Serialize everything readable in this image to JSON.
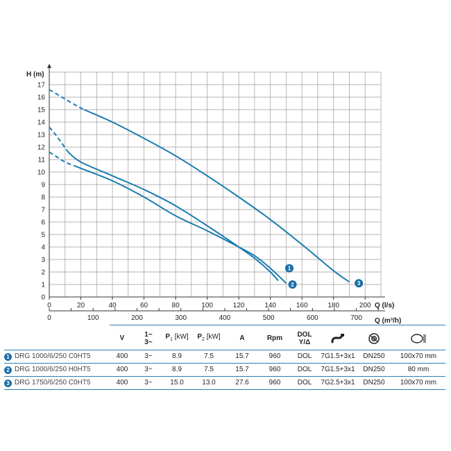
{
  "chart_data": {
    "type": "line",
    "ylabel": "H (m)",
    "xlabel": "Q (l/s)",
    "xlabel2": "Q (m³/h)",
    "xlim": [
      0,
      210
    ],
    "ylim": [
      0,
      18
    ],
    "xticks": [
      0,
      20,
      40,
      60,
      80,
      100,
      120,
      140,
      160,
      180,
      200
    ],
    "yticks": [
      0,
      1,
      2,
      3,
      4,
      5,
      6,
      7,
      8,
      9,
      10,
      11,
      12,
      13,
      14,
      15,
      16,
      17
    ],
    "x2ticks": [
      0,
      100,
      200,
      300,
      400,
      500,
      600,
      700
    ],
    "grid": true,
    "series": [
      {
        "label": "1",
        "dashed": [
          [
            0,
            13.6
          ],
          [
            4,
            13.0
          ],
          [
            8,
            12.3
          ],
          [
            12,
            11.6
          ]
        ],
        "solid": [
          [
            12,
            11.6
          ],
          [
            20,
            10.8
          ],
          [
            40,
            9.7
          ],
          [
            60,
            8.6
          ],
          [
            80,
            7.3
          ],
          [
            100,
            5.7
          ],
          [
            120,
            4.0
          ],
          [
            130,
            3.1
          ],
          [
            140,
            2.0
          ],
          [
            145,
            1.3
          ]
        ],
        "marker": [
          152,
          2.3
        ]
      },
      {
        "label": "2",
        "dashed": [
          [
            0,
            11.6
          ],
          [
            5,
            11.2
          ],
          [
            10,
            10.8
          ],
          [
            16,
            10.5
          ]
        ],
        "solid": [
          [
            16,
            10.5
          ],
          [
            20,
            10.3
          ],
          [
            40,
            9.3
          ],
          [
            60,
            8.0
          ],
          [
            80,
            6.5
          ],
          [
            100,
            5.3
          ],
          [
            120,
            4.0
          ],
          [
            130,
            3.3
          ],
          [
            140,
            2.3
          ],
          [
            150,
            1.1
          ]
        ],
        "marker": [
          154,
          1.0
        ]
      },
      {
        "label": "3",
        "dashed": [
          [
            0,
            16.6
          ],
          [
            8,
            16.0
          ],
          [
            16,
            15.4
          ],
          [
            22,
            15.0
          ]
        ],
        "solid": [
          [
            22,
            15.0
          ],
          [
            40,
            14.0
          ],
          [
            60,
            12.7
          ],
          [
            80,
            11.3
          ],
          [
            100,
            9.7
          ],
          [
            120,
            8.0
          ],
          [
            140,
            6.2
          ],
          [
            160,
            4.2
          ],
          [
            180,
            2.1
          ],
          [
            190,
            1.2
          ]
        ],
        "marker": [
          196,
          1.1
        ]
      }
    ]
  },
  "table": {
    "headers": {
      "v": "V",
      "phase_top": "1~",
      "phase_bottom": "3~",
      "p1_sym": "P",
      "p1_sub": "1",
      "p1_unit": "[kW]",
      "p2_sym": "P",
      "p2_sub": "2",
      "p2_unit": "[kW]",
      "amp": "A",
      "rpm": "Rpm",
      "dol_top": "DOL",
      "dol_bottom": "Y/Δ",
      "cable_icon": "cable-icon",
      "flange_icon": "flange-icon",
      "passage_icon": "solid-passage-icon"
    },
    "rows": [
      {
        "num": "1",
        "model": "DRG 1000/6/250 C0HT5",
        "v": "400",
        "phase": "3~",
        "p1": "8.9",
        "p2": "7.5",
        "amp": "15.7",
        "rpm": "960",
        "start": "DOL",
        "cable": "7G1.5+3x1",
        "outlet": "DN250",
        "passage": "100x70 mm"
      },
      {
        "num": "2",
        "model": "DRG 1000/6/250 H0HT5",
        "v": "400",
        "phase": "3~",
        "p1": "8.9",
        "p2": "7.5",
        "amp": "15.7",
        "rpm": "960",
        "start": "DOL",
        "cable": "7G1.5+3x1",
        "outlet": "DN250",
        "passage": "80 mm"
      },
      {
        "num": "3",
        "model": "DRG 1750/6/250 C0HT5",
        "v": "400",
        "phase": "3~",
        "p1": "15.0",
        "p2": "13.0",
        "amp": "27.6",
        "rpm": "960",
        "start": "DOL",
        "cable": "7G2.5+3x1",
        "outlet": "DN250",
        "passage": "100x70 mm"
      }
    ]
  },
  "colors": {
    "curve": "#1a7bb0",
    "badge": "#1a6ea6",
    "grid": "#9a9a9a",
    "axis": "#333333"
  }
}
